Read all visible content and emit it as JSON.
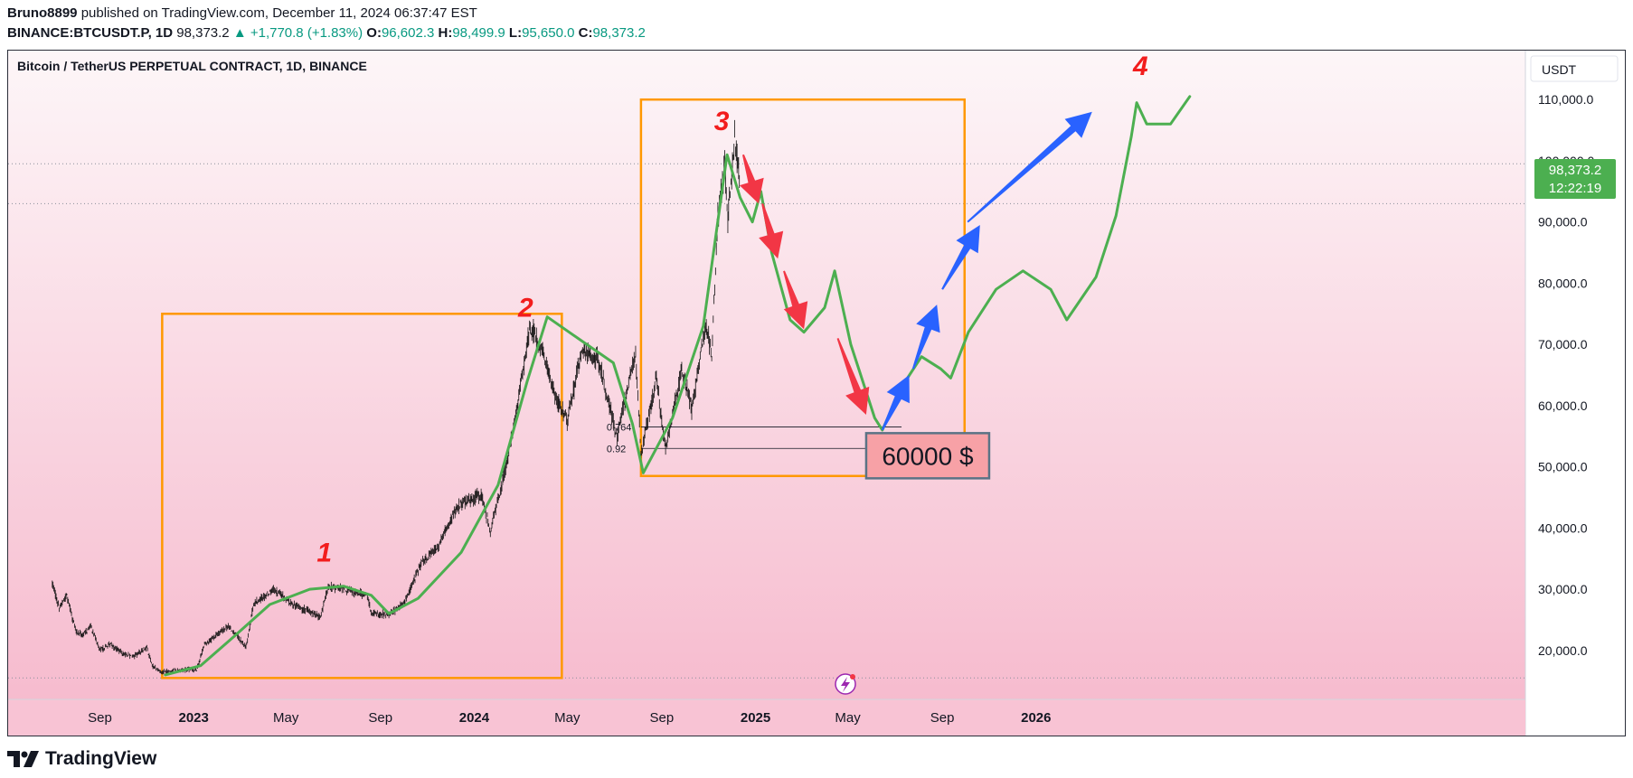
{
  "header": {
    "author": "Bruno8899",
    "published_text": "published on TradingView.com, December 11, 2024 06:37:47 EST",
    "symbol": "BINANCE:BTCUSDT.P, 1D",
    "last": "98,373.2",
    "change": "+1,770.8 (+1.83%)",
    "o_label": "O:",
    "o_value": "96,602.3",
    "h_label": "H:",
    "h_value": "98,499.9",
    "l_label": "L:",
    "l_value": "95,650.0",
    "c_label": "C:",
    "c_value": "98,373.2"
  },
  "chart_data": {
    "type": "candlestick",
    "title": "Bitcoin / TetherUS PERPETUAL CONTRACT, 1D, BINANCE",
    "currency": "USDT",
    "ylim": [
      12000,
      118000
    ],
    "y_ticks": [
      20000,
      30000,
      40000,
      50000,
      60000,
      70000,
      80000,
      90000,
      100000,
      110000
    ],
    "y_tick_labels": [
      "20,000.0",
      "30,000.0",
      "40,000.0",
      "50,000.0",
      "60,000.0",
      "70,000.0",
      "80,000.0",
      "90,000.0",
      "100,000.0",
      "110,000.0"
    ],
    "x_ticks": [
      "2022-09-01",
      "2023-01-01",
      "2023-05-01",
      "2023-09-01",
      "2024-01-01",
      "2024-05-01",
      "2024-09-01",
      "2025-01-01",
      "2025-05-01",
      "2025-09-01",
      "2026-01-01"
    ],
    "x_tick_labels": [
      "Sep",
      "2023",
      "May",
      "Sep",
      "2024",
      "May",
      "Sep",
      "2025",
      "May",
      "Sep",
      "2026"
    ],
    "bold_x_labels": [
      "2023",
      "2024",
      "2025",
      "2026"
    ],
    "last_price_label": "98,373.2",
    "countdown": "12:22:19",
    "price_path": [
      [
        "2022-07-01",
        31000
      ],
      [
        "2022-07-10",
        27000
      ],
      [
        "2022-07-20",
        29000
      ],
      [
        "2022-08-01",
        23000
      ],
      [
        "2022-08-10",
        22500
      ],
      [
        "2022-08-20",
        24000
      ],
      [
        "2022-09-01",
        20000
      ],
      [
        "2022-09-15",
        21000
      ],
      [
        "2022-10-01",
        19500
      ],
      [
        "2022-10-15",
        19000
      ],
      [
        "2022-11-01",
        20500
      ],
      [
        "2022-11-08",
        17500
      ],
      [
        "2022-11-20",
        16500
      ],
      [
        "2022-12-15",
        16800
      ],
      [
        "2023-01-05",
        16900
      ],
      [
        "2023-01-15",
        21000
      ],
      [
        "2023-02-15",
        24000
      ],
      [
        "2023-03-10",
        20500
      ],
      [
        "2023-03-20",
        27500
      ],
      [
        "2023-04-15",
        30000
      ],
      [
        "2023-05-10",
        27500
      ],
      [
        "2023-06-15",
        25500
      ],
      [
        "2023-06-25",
        30500
      ],
      [
        "2023-07-15",
        30000
      ],
      [
        "2023-08-15",
        29000
      ],
      [
        "2023-08-20",
        26000
      ],
      [
        "2023-09-10",
        25800
      ],
      [
        "2023-10-01",
        27500
      ],
      [
        "2023-10-25",
        34500
      ],
      [
        "2023-11-15",
        37000
      ],
      [
        "2023-12-10",
        43500
      ],
      [
        "2024-01-10",
        45500
      ],
      [
        "2024-01-22",
        39500
      ],
      [
        "2024-02-15",
        52000
      ],
      [
        "2024-03-05",
        66000
      ],
      [
        "2024-03-14",
        73000
      ],
      [
        "2024-04-01",
        68000
      ],
      [
        "2024-04-17",
        61000
      ],
      [
        "2024-05-01",
        57500
      ],
      [
        "2024-05-20",
        69000
      ],
      [
        "2024-06-10",
        67500
      ],
      [
        "2024-07-05",
        55000
      ],
      [
        "2024-07-29",
        68500
      ],
      [
        "2024-08-05",
        52000
      ],
      [
        "2024-08-25",
        64500
      ],
      [
        "2024-09-06",
        53000
      ],
      [
        "2024-09-27",
        66000
      ],
      [
        "2024-10-10",
        59500
      ],
      [
        "2024-10-29",
        73500
      ],
      [
        "2024-11-05",
        68000
      ],
      [
        "2024-11-13",
        91000
      ],
      [
        "2024-11-22",
        99500
      ],
      [
        "2024-11-26",
        91000
      ],
      [
        "2024-12-05",
        103500
      ],
      [
        "2024-12-11",
        98373
      ]
    ],
    "horizontal_levels": [
      99500,
      93000,
      15500
    ],
    "fib_levels": [
      {
        "label": "0.764",
        "value": 56500
      },
      {
        "label": "0.92",
        "value": 53000
      }
    ],
    "annotations": {
      "numbers": [
        "1",
        "2",
        "3",
        "4"
      ],
      "target_label": "60000 $"
    }
  },
  "colors": {
    "candle": "#111111",
    "projection": "#4caf50",
    "box": "#ff9800",
    "down_arrow": "#f23645",
    "up_arrow": "#2962ff",
    "number": "#f21d1d",
    "price_badge": "#4caf50",
    "target_box_fill": "#f7a1a6",
    "target_box_border": "#5b7385"
  },
  "footer": {
    "brand": "TradingView"
  }
}
